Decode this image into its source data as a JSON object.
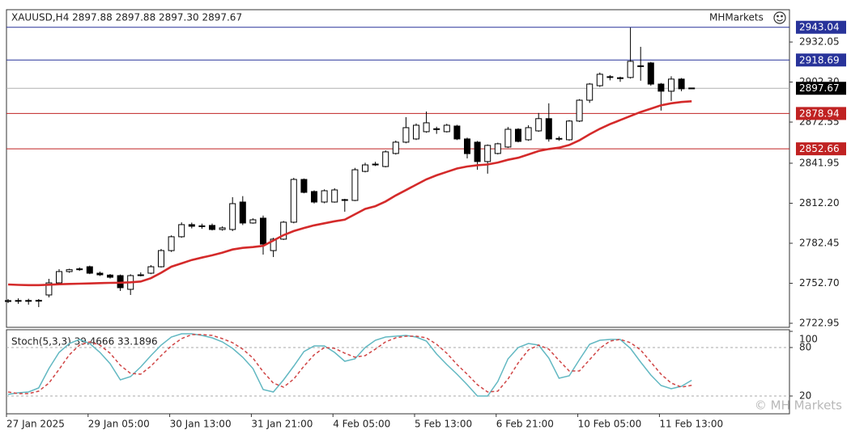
{
  "chart_data": [
    {
      "type": "candlestick",
      "title": "XAUUSD,H4  2897.88 2897.88 2897.30 2897.67",
      "brand": "MHMarkets",
      "categories": [
        "27 Jan 2025",
        null,
        null,
        null,
        null,
        null,
        null,
        null,
        "29 Jan 05:00",
        null,
        null,
        null,
        null,
        null,
        null,
        null,
        "30 Jan 13:00",
        null,
        null,
        null,
        null,
        null,
        null,
        null,
        "31 Jan 21:00",
        null,
        null,
        null,
        null,
        null,
        null,
        null,
        "4 Feb 05:00",
        null,
        null,
        null,
        null,
        null,
        null,
        null,
        "5 Feb 13:00",
        null,
        null,
        null,
        null,
        null,
        null,
        null,
        "6 Feb 21:00",
        null,
        null,
        null,
        null,
        null,
        null,
        null,
        "10 Feb 05:00",
        null,
        null,
        null,
        null,
        null,
        null,
        null,
        "11 Feb 13:00",
        null,
        null,
        null
      ],
      "ohlc": [
        [
          2739.8,
          2741.0,
          2738.0,
          2739.6
        ],
        [
          2739.6,
          2741.5,
          2737.4,
          2739.9
        ],
        [
          2739.9,
          2741.2,
          2736.8,
          2739.5
        ],
        [
          2739.5,
          2741.0,
          2735.0,
          2740.0
        ],
        [
          2744.0,
          2756.0,
          2742.2,
          2753.0
        ],
        [
          2753.0,
          2763.2,
          2752.0,
          2761.4
        ],
        [
          2761.4,
          2763.5,
          2760.5,
          2762.8
        ],
        [
          2762.8,
          2764.5,
          2761.9,
          2763.4
        ],
        [
          2765.0,
          2765.8,
          2759.5,
          2760.2
        ],
        [
          2760.2,
          2761.4,
          2758.1,
          2759.0
        ],
        [
          2758.8,
          2759.6,
          2756.2,
          2757.2
        ],
        [
          2758.4,
          2759.2,
          2747.0,
          2749.4
        ],
        [
          2748.2,
          2759.4,
          2744.0,
          2758.4
        ],
        [
          2758.4,
          2760.8,
          2757.8,
          2759.0
        ],
        [
          2760.2,
          2766.2,
          2759.5,
          2765.0
        ],
        [
          2765.0,
          2778.2,
          2764.4,
          2777.0
        ],
        [
          2777.0,
          2788.3,
          2776.0,
          2787.3
        ],
        [
          2787.3,
          2798.0,
          2786.5,
          2796.3
        ],
        [
          2796.3,
          2797.8,
          2793.5,
          2795.1
        ],
        [
          2795.1,
          2797.0,
          2793.2,
          2795.4
        ],
        [
          2795.7,
          2797.1,
          2792.0,
          2792.7
        ],
        [
          2792.7,
          2795.0,
          2791.8,
          2793.9
        ],
        [
          2792.7,
          2816.7,
          2791.5,
          2811.9
        ],
        [
          2813.1,
          2817.5,
          2796.0,
          2797.5
        ],
        [
          2797.5,
          2801.0,
          2797.0,
          2799.9
        ],
        [
          2801.1,
          2803.0,
          2774.0,
          2781.8
        ],
        [
          2777.0,
          2786.5,
          2772.2,
          2785.5
        ],
        [
          2785.5,
          2799.0,
          2784.9,
          2798.1
        ],
        [
          2798.1,
          2831.1,
          2797.3,
          2829.9
        ],
        [
          2829.9,
          2830.6,
          2819.6,
          2820.3
        ],
        [
          2820.9,
          2821.8,
          2812.0,
          2813.1
        ],
        [
          2813.1,
          2822.5,
          2812.2,
          2821.5
        ],
        [
          2813.1,
          2823.4,
          2812.6,
          2822.1
        ],
        [
          2814.3,
          2815.5,
          2805.9,
          2814.9
        ],
        [
          2814.3,
          2838.5,
          2813.8,
          2837.1
        ],
        [
          2835.9,
          2842.3,
          2835.2,
          2840.7
        ],
        [
          2840.7,
          2843.0,
          2839.9,
          2841.3
        ],
        [
          2839.5,
          2851.5,
          2838.9,
          2850.4
        ],
        [
          2849.2,
          2858.8,
          2848.4,
          2857.6
        ],
        [
          2857.6,
          2876.2,
          2856.8,
          2868.4
        ],
        [
          2860.0,
          2871.5,
          2859.2,
          2870.2
        ],
        [
          2865.4,
          2880.4,
          2864.6,
          2872.0
        ],
        [
          2867.2,
          2869.1,
          2863.8,
          2867.6
        ],
        [
          2865.4,
          2871.3,
          2864.8,
          2870.2
        ],
        [
          2869.6,
          2870.5,
          2859.2,
          2860.0
        ],
        [
          2860.0,
          2861.0,
          2845.5,
          2849.1
        ],
        [
          2857.6,
          2858.5,
          2837.1,
          2843.2
        ],
        [
          2843.2,
          2855.9,
          2834.2,
          2855.2
        ],
        [
          2849.2,
          2857.2,
          2848.5,
          2856.4
        ],
        [
          2854.0,
          2868.9,
          2853.3,
          2867.2
        ],
        [
          2867.2,
          2868.0,
          2857.5,
          2858.2
        ],
        [
          2859.4,
          2870.2,
          2858.6,
          2868.4
        ],
        [
          2866.0,
          2879.3,
          2865.3,
          2875.1
        ],
        [
          2875.1,
          2886.5,
          2858.0,
          2860.0
        ],
        [
          2860.0,
          2861.9,
          2858.6,
          2860.4
        ],
        [
          2859.4,
          2874.1,
          2858.7,
          2873.3
        ],
        [
          2873.3,
          2889.6,
          2872.6,
          2888.8
        ],
        [
          2888.8,
          2901.6,
          2886.8,
          2900.8
        ],
        [
          2899.6,
          2909.4,
          2898.7,
          2908.1
        ],
        [
          2906.3,
          2907.5,
          2903.6,
          2906.1
        ],
        [
          2905.1,
          2906.3,
          2902.5,
          2905.5
        ],
        [
          2905.7,
          2942.8,
          2904.9,
          2917.7
        ],
        [
          2914.1,
          2928.5,
          2903.3,
          2914.4
        ],
        [
          2916.5,
          2917.3,
          2899.6,
          2900.8
        ],
        [
          2900.8,
          2901.6,
          2881.1,
          2895.5
        ],
        [
          2895.5,
          2906.6,
          2888.3,
          2904.5
        ],
        [
          2904.5,
          2905.3,
          2895.5,
          2897.3
        ],
        [
          2897.88,
          2897.88,
          2897.3,
          2897.67
        ]
      ],
      "up_color": "#ffffff",
      "down_color": "#000000",
      "series": [
        {
          "color": "#d42a2a",
          "values": [
            2751.8,
            2751.5,
            2751.3,
            2751.3,
            2751.6,
            2752.0,
            2752.2,
            2752.4,
            2752.6,
            2752.8,
            2753.0,
            2753.1,
            2753.4,
            2754.0,
            2756.5,
            2760.5,
            2765.0,
            2767.5,
            2770.0,
            2771.8,
            2773.5,
            2775.5,
            2777.8,
            2779.0,
            2779.6,
            2780.5,
            2784.5,
            2788.5,
            2791.5,
            2793.8,
            2795.8,
            2797.3,
            2798.8,
            2800.0,
            2804.0,
            2808.0,
            2810.0,
            2813.5,
            2818.0,
            2822.0,
            2826.0,
            2830.0,
            2833.0,
            2835.5,
            2838.0,
            2839.5,
            2840.5,
            2841.0,
            2842.5,
            2844.5,
            2846.0,
            2848.5,
            2851.0,
            2852.5,
            2853.5,
            2855.5,
            2859.0,
            2863.5,
            2867.5,
            2871.0,
            2874.0,
            2877.0,
            2880.0,
            2882.5,
            2885.0,
            2886.5,
            2887.5,
            2888.0
          ]
        }
      ],
      "levels": [
        {
          "value": 2943.04,
          "color": "#28339a"
        },
        {
          "value": 2918.69,
          "color": "#28339a"
        },
        {
          "value": 2897.67,
          "color": "#000000"
        },
        {
          "value": 2878.94,
          "color": "#c02222"
        },
        {
          "value": 2852.66,
          "color": "#c02222"
        }
      ],
      "ylim": [
        2719.95,
        2956.1
      ],
      "yticks": [
        {
          "value": 2722.95,
          "label": "2722.95"
        },
        {
          "value": 2752.7,
          "label": "2752.70"
        },
        {
          "value": 2782.45,
          "label": "2782.45"
        },
        {
          "value": 2812.2,
          "label": "2812.20"
        },
        {
          "value": 2841.95,
          "label": "2841.95"
        },
        {
          "value": 2872.55,
          "label": "2872.55"
        },
        {
          "value": 2902.3,
          "label": "2902.30"
        },
        {
          "value": 2932.05,
          "label": "2932.05"
        }
      ]
    },
    {
      "type": "line",
      "title": "Stoch(5,3,3) 39.4666 33.1896",
      "series": [
        {
          "color": "#62b8c2",
          "dash": false,
          "values": [
            22,
            24,
            25,
            30,
            54,
            74,
            85,
            90,
            85,
            74,
            60,
            40,
            44,
            56,
            70,
            83,
            93,
            97,
            97,
            95,
            92,
            87,
            79,
            68,
            54,
            28,
            25,
            40,
            57,
            75,
            82,
            82,
            74,
            63,
            66,
            80,
            89,
            93,
            94,
            95,
            93,
            88,
            72,
            59,
            47,
            34,
            20,
            20,
            38,
            66,
            80,
            85,
            83,
            67,
            42,
            45,
            65,
            84,
            89,
            90,
            90,
            79,
            62,
            46,
            33,
            29,
            32,
            39.4666
          ]
        },
        {
          "color": "#d04545",
          "dash": true,
          "values": [
            25,
            23,
            23,
            26,
            36,
            53,
            71,
            83,
            87,
            83,
            73,
            58,
            48,
            47,
            57,
            70,
            82,
            91,
            96,
            96,
            95,
            91,
            86,
            78,
            67,
            50,
            36,
            31,
            41,
            57,
            71,
            80,
            79,
            73,
            68,
            70,
            78,
            87,
            92,
            94,
            94,
            92,
            84,
            73,
            59,
            47,
            34,
            25,
            26,
            41,
            61,
            77,
            83,
            78,
            64,
            51,
            51,
            65,
            79,
            88,
            90,
            86,
            77,
            62,
            47,
            36,
            31,
            33.1896
          ]
        }
      ],
      "levels": [
        80,
        20
      ],
      "ylim": [
        -2,
        100
      ],
      "yticks": [
        100,
        80,
        20
      ]
    }
  ],
  "watermark": "© MH Markets"
}
